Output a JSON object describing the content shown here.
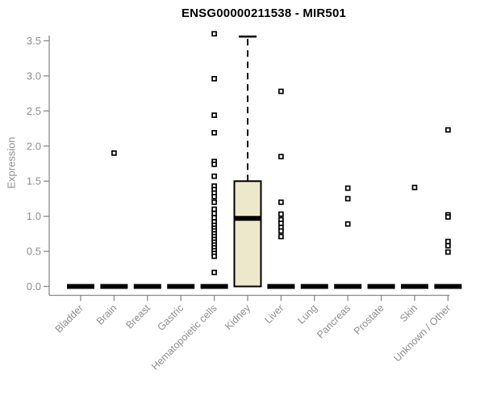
{
  "title": "ENSG00000211538 - MIR501",
  "chart_data": {
    "type": "boxplot",
    "title": "ENSG00000211538 - MIR501",
    "xlabel": "",
    "ylabel": "Expression",
    "ylim": [
      0,
      3.5
    ],
    "ytick_labels": [
      "0.0",
      "0.5",
      "1.0",
      "1.5",
      "2.0",
      "2.5",
      "3.0",
      "3.5"
    ],
    "grid": false,
    "legend_position": "none",
    "categories": [
      "Bladder",
      "Brain",
      "Breast",
      "Gastric",
      "Hematopoietic cells",
      "Kidney",
      "Liver",
      "Lung",
      "Pancreas",
      "Prostate",
      "Skin",
      "Unknown / Other"
    ],
    "boxes": [
      {
        "category": "Bladder",
        "whisker_low": 0,
        "q1": 0,
        "median": 0,
        "q3": 0,
        "whisker_high": 0
      },
      {
        "category": "Brain",
        "whisker_low": 0,
        "q1": 0,
        "median": 0,
        "q3": 0,
        "whisker_high": 0
      },
      {
        "category": "Breast",
        "whisker_low": 0,
        "q1": 0,
        "median": 0,
        "q3": 0,
        "whisker_high": 0
      },
      {
        "category": "Gastric",
        "whisker_low": 0,
        "q1": 0,
        "median": 0,
        "q3": 0,
        "whisker_high": 0
      },
      {
        "category": "Hematopoietic cells",
        "whisker_low": 0,
        "q1": 0,
        "median": 0,
        "q3": 0,
        "whisker_high": 0
      },
      {
        "category": "Kidney",
        "whisker_low": 0,
        "q1": 0,
        "median": 0.97,
        "q3": 1.5,
        "whisker_high": 3.56
      },
      {
        "category": "Liver",
        "whisker_low": 0,
        "q1": 0,
        "median": 0,
        "q3": 0,
        "whisker_high": 0
      },
      {
        "category": "Lung",
        "whisker_low": 0,
        "q1": 0,
        "median": 0,
        "q3": 0,
        "whisker_high": 0
      },
      {
        "category": "Pancreas",
        "whisker_low": 0,
        "q1": 0,
        "median": 0,
        "q3": 0,
        "whisker_high": 0
      },
      {
        "category": "Prostate",
        "whisker_low": 0,
        "q1": 0,
        "median": 0,
        "q3": 0,
        "whisker_high": 0
      },
      {
        "category": "Skin",
        "whisker_low": 0,
        "q1": 0,
        "median": 0,
        "q3": 0,
        "whisker_high": 0
      },
      {
        "category": "Unknown / Other",
        "whisker_low": 0,
        "q1": 0,
        "median": 0,
        "q3": 0,
        "whisker_high": 0
      }
    ],
    "outlier_points": {
      "Bladder": [],
      "Brain": [
        1.9
      ],
      "Breast": [],
      "Gastric": [],
      "Hematopoietic cells": [
        3.6,
        2.96,
        2.44,
        2.19,
        1.78,
        1.74,
        1.57,
        1.43,
        1.38,
        1.33,
        1.28,
        1.2,
        1.1,
        1.04,
        0.98,
        0.92,
        0.87,
        0.83,
        0.79,
        0.75,
        0.71,
        0.67,
        0.63,
        0.59,
        0.55,
        0.51,
        0.47,
        0.43,
        0.2
      ],
      "Kidney": [],
      "Liver": [
        2.78,
        1.85,
        1.2,
        1.03,
        0.95,
        0.9,
        0.84,
        0.79,
        0.71
      ],
      "Lung": [],
      "Pancreas": [
        1.4,
        1.25,
        0.89
      ],
      "Prostate": [],
      "Skin": [
        1.41
      ],
      "Unknown / Other": [
        2.23,
        1.02,
        0.99,
        0.64,
        0.58,
        0.49
      ]
    },
    "colors": {
      "box_fill": "#ede7cc",
      "box_stroke": "#000000",
      "median": "#000000",
      "point_stroke": "#000000",
      "point_fill": "#ffffff",
      "axis": "#8a8a8a",
      "tick_label": "#8e8e8e",
      "title": "#000000",
      "background": "#ffffff"
    }
  }
}
